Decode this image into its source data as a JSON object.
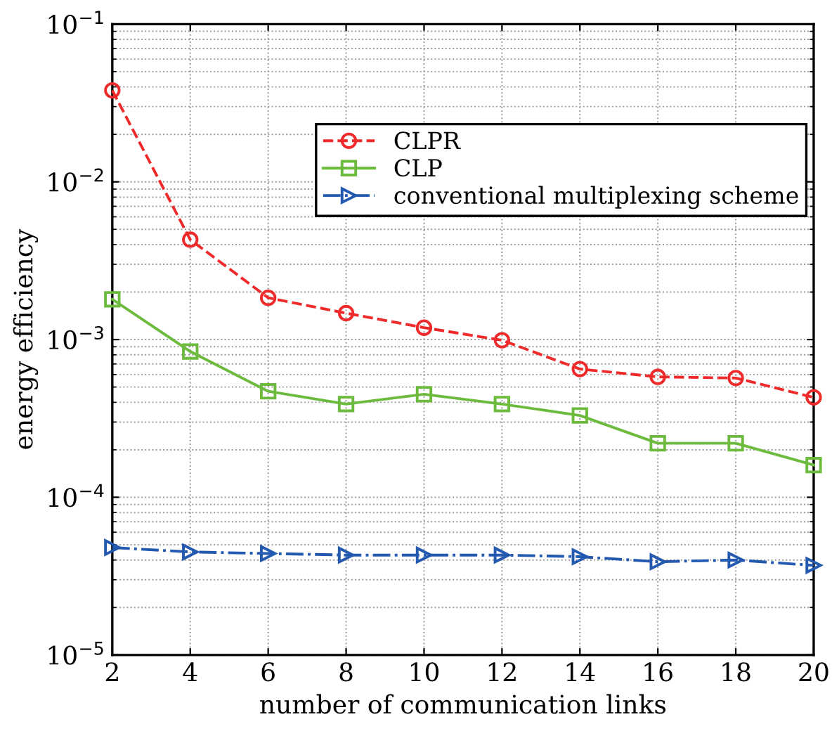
{
  "chart_data": {
    "type": "line",
    "xlabel": "number of communication links",
    "ylabel": "energy efficiency",
    "x": [
      2,
      4,
      6,
      8,
      10,
      12,
      14,
      16,
      18,
      20
    ],
    "series": [
      {
        "name": "CLPR",
        "color": "#ee2a2a",
        "marker": "circle",
        "line_style": "dashed",
        "values": [
          0.038,
          0.0043,
          0.00184,
          0.00147,
          0.00119,
          0.00099,
          0.00065,
          0.00058,
          0.00057,
          0.00043
        ]
      },
      {
        "name": "CLP",
        "color": "#6dbb3e",
        "marker": "square",
        "line_style": "solid",
        "values": [
          0.0018,
          0.00084,
          0.00047,
          0.00039,
          0.00045,
          0.00039,
          0.00033,
          0.00022,
          0.00022,
          0.00016
        ]
      },
      {
        "name": "conventional multiplexing scheme",
        "color": "#2459b0",
        "marker": "triangle",
        "line_style": "dashdot",
        "values": [
          4.8e-05,
          4.5e-05,
          4.4e-05,
          4.3e-05,
          4.3e-05,
          4.3e-05,
          4.2e-05,
          3.9e-05,
          4e-05,
          3.7e-05
        ]
      }
    ],
    "xlim": [
      2,
      20
    ],
    "xticks": [
      2,
      4,
      6,
      8,
      10,
      12,
      14,
      16,
      18,
      20
    ],
    "ylim": [
      1e-05,
      0.1
    ],
    "yticks": [
      {
        "value": 1e-05,
        "label": "10$^{−5}$"
      },
      {
        "value": 0.0001,
        "label": "10$^{−4}$"
      },
      {
        "value": 0.001,
        "label": "10$^{−3}$"
      },
      {
        "value": 0.01,
        "label": "10$^{−2}$"
      },
      {
        "value": 0.1,
        "label": "10$^{−1}$"
      }
    ],
    "log": "y",
    "grid": true,
    "legend": "top"
  }
}
